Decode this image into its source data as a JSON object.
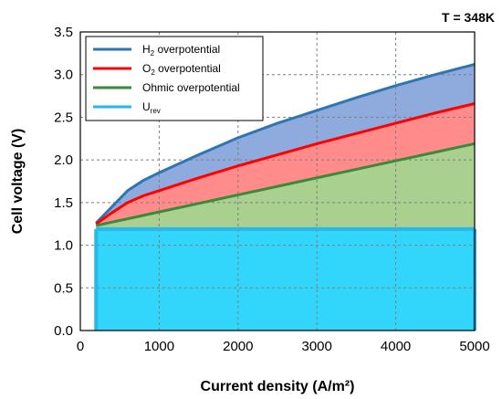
{
  "chart_data": {
    "type": "area",
    "annotation": "T = 348K",
    "xlabel": "Current density (A/m²)",
    "ylabel": "Cell voltage (V)",
    "xlim": [
      0,
      5000
    ],
    "ylim": [
      0,
      3.5
    ],
    "xticks": [
      0,
      1000,
      2000,
      3000,
      4000,
      5000
    ],
    "yticks": [
      0.0,
      0.5,
      1.0,
      1.5,
      2.0,
      2.5,
      3.0,
      3.5
    ],
    "ytick_labels": [
      "0.0",
      "0.5",
      "1.0",
      "1.5",
      "2.0",
      "2.5",
      "3.0",
      "3.5"
    ],
    "grid": true,
    "legend_position": "top-left",
    "x": [
      200,
      400,
      600,
      800,
      1000,
      1500,
      2000,
      2500,
      3000,
      3500,
      4000,
      4500,
      5000
    ],
    "series": [
      {
        "name_main": "H",
        "name_sub": "2",
        "name_rest": " overpotential",
        "color": "#2e75b6",
        "fill": "#8faadc",
        "values": [
          1.26,
          1.45,
          1.64,
          1.76,
          1.85,
          2.06,
          2.26,
          2.43,
          2.58,
          2.73,
          2.87,
          3.0,
          3.12
        ]
      },
      {
        "name_main": "O",
        "name_sub": "2",
        "name_rest": " overpotential",
        "color": "#ff0000",
        "fill": "#ff8b8b",
        "values": [
          1.25,
          1.38,
          1.5,
          1.58,
          1.64,
          1.79,
          1.93,
          2.06,
          2.19,
          2.31,
          2.43,
          2.55,
          2.66
        ]
      },
      {
        "name_main": "Ohmic overpotential",
        "name_sub": "",
        "name_rest": "",
        "color": "#3a8a3a",
        "fill": "#a9d08e",
        "values": [
          1.23,
          1.27,
          1.31,
          1.35,
          1.39,
          1.49,
          1.59,
          1.69,
          1.79,
          1.89,
          1.99,
          2.09,
          2.19
        ]
      },
      {
        "name_main": "U",
        "name_sub": "rev",
        "name_rest": "",
        "color": "#29b6e8",
        "fill": "#33d6fb",
        "values": [
          1.19,
          1.19,
          1.19,
          1.19,
          1.19,
          1.19,
          1.19,
          1.19,
          1.19,
          1.19,
          1.19,
          1.19,
          1.19
        ]
      }
    ]
  }
}
